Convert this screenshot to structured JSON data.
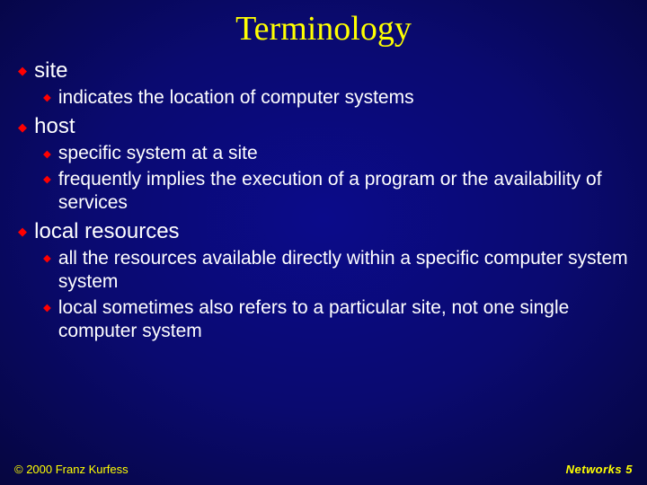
{
  "colors": {
    "title_color": "#ffff00",
    "bullet_color": "#ff0000",
    "body_text_color": "#ffffff",
    "footer_color": "#ffff00",
    "background_gradient": [
      "#0b0b8a",
      "#0a0a70",
      "#060645",
      "#020218",
      "#000010"
    ]
  },
  "typography": {
    "title_font_family": "Times New Roman",
    "title_font_size_pt": 32,
    "body_font_family": "Arial",
    "l1_font_size_pt": 20,
    "l2_font_size_pt": 18,
    "footer_font_size_pt": 11
  },
  "title": "Terminology",
  "items": [
    {
      "label": "site",
      "sub": [
        {
          "text": "indicates the location of computer systems"
        }
      ]
    },
    {
      "label": "host",
      "sub": [
        {
          "text": "specific system at a site"
        },
        {
          "text": "frequently implies the execution of a program or the availability of services"
        }
      ]
    },
    {
      "label": "local resources",
      "sub": [
        {
          "text": "all the resources available directly within a specific computer system system"
        },
        {
          "text": "local sometimes also refers to a particular site, not one single computer system"
        }
      ]
    }
  ],
  "footer": {
    "left": "© 2000 Franz Kurfess",
    "right": "Networks  5"
  }
}
